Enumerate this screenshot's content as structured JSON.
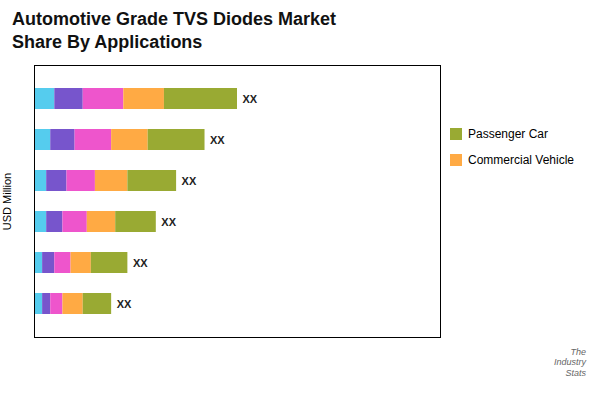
{
  "chart_data": {
    "type": "bar",
    "orientation": "horizontal",
    "stacked": true,
    "title": "Automotive Grade TVS Diodes Market\nShare By Applications",
    "ylabel": "USD Million",
    "annotation": "XX",
    "caption": "The\nIndustry\nStats",
    "categories": [
      null,
      null,
      null,
      null,
      null,
      null
    ],
    "series": [
      {
        "color": "#55CCEE",
        "values": [
          5,
          4,
          3,
          3,
          2,
          2
        ]
      },
      {
        "color": "#7755CC",
        "values": [
          7,
          6,
          5,
          4,
          3,
          2
        ]
      },
      {
        "color": "#EE55CC",
        "values": [
          10,
          9,
          7,
          6,
          4,
          3
        ]
      },
      {
        "name": "Commercial Vehicle",
        "color": "#FFAA44",
        "values": [
          10,
          9,
          8,
          7,
          5,
          5
        ]
      },
      {
        "name": "Passenger Car",
        "color": "#99AA33",
        "values": [
          18,
          14,
          12,
          10,
          9,
          7
        ]
      }
    ],
    "xlim": [
      0,
      100
    ],
    "xticks": [],
    "tick_labels": false,
    "legend": "right",
    "grid": false
  }
}
